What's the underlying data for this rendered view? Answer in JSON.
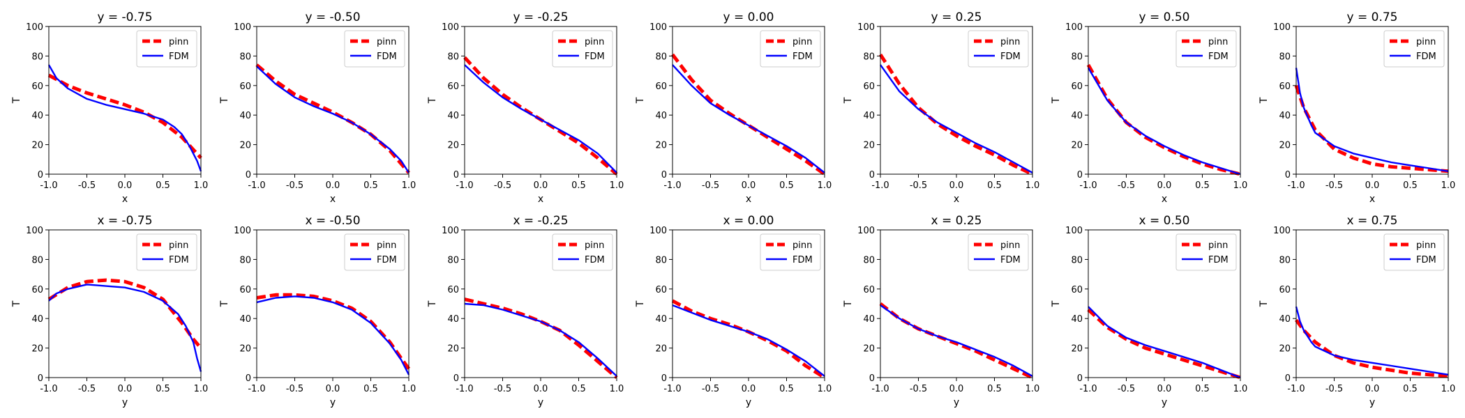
{
  "colors": {
    "pinn": "#ff0000",
    "fdm": "#0000ff"
  },
  "chart_data": [
    {
      "type": "line",
      "title": "y = -0.75",
      "xlabel": "x",
      "ylabel": "T",
      "xlim": [
        -1,
        1
      ],
      "ylim": [
        0,
        100
      ],
      "legend": "top-right",
      "grid": false,
      "xticks": [
        "-1.0",
        "-0.5",
        "0.0",
        "0.5",
        "1.0"
      ],
      "yticks": [
        "0",
        "20",
        "40",
        "60",
        "80",
        "100"
      ],
      "series": [
        {
          "name": "pinn",
          "x": [
            -1,
            -0.75,
            -0.5,
            -0.25,
            0,
            0.25,
            0.5,
            0.75,
            1
          ],
          "y": [
            67,
            60,
            55,
            51,
            47,
            42,
            35,
            25,
            11
          ]
        },
        {
          "name": "FDM",
          "x": [
            -1,
            -0.9,
            -0.75,
            -0.5,
            -0.25,
            0,
            0.25,
            0.5,
            0.65,
            0.75,
            0.85,
            0.95,
            1
          ],
          "y": [
            74,
            65,
            58,
            51,
            47,
            44,
            41,
            37,
            32,
            27,
            19,
            9,
            2
          ]
        }
      ]
    },
    {
      "type": "line",
      "title": "y = -0.50",
      "xlabel": "x",
      "ylabel": "T",
      "xlim": [
        -1,
        1
      ],
      "ylim": [
        0,
        100
      ],
      "legend": "top-right",
      "grid": false,
      "xticks": [
        "-1.0",
        "-0.5",
        "0.0",
        "0.5",
        "1.0"
      ],
      "yticks": [
        "0",
        "20",
        "40",
        "60",
        "80",
        "100"
      ],
      "series": [
        {
          "name": "pinn",
          "x": [
            -1,
            -0.75,
            -0.5,
            -0.25,
            0,
            0.25,
            0.5,
            0.75,
            1
          ],
          "y": [
            74,
            63,
            54,
            48,
            42,
            35,
            27,
            16,
            1
          ]
        },
        {
          "name": "FDM",
          "x": [
            -1,
            -0.75,
            -0.5,
            -0.25,
            0,
            0.25,
            0.5,
            0.75,
            0.9,
            1
          ],
          "y": [
            73,
            61,
            52,
            46,
            41,
            35,
            27,
            17,
            9,
            1
          ]
        }
      ]
    },
    {
      "type": "line",
      "title": "y = -0.25",
      "xlabel": "x",
      "ylabel": "T",
      "xlim": [
        -1,
        1
      ],
      "ylim": [
        0,
        100
      ],
      "legend": "top-right",
      "grid": false,
      "xticks": [
        "-1.0",
        "-0.5",
        "0.0",
        "0.5",
        "1.0"
      ],
      "yticks": [
        "0",
        "20",
        "40",
        "60",
        "80",
        "100"
      ],
      "series": [
        {
          "name": "pinn",
          "x": [
            -1,
            -0.75,
            -0.5,
            -0.25,
            0,
            0.25,
            0.5,
            0.75,
            1
          ],
          "y": [
            79,
            65,
            54,
            45,
            37,
            29,
            21,
            11,
            0
          ]
        },
        {
          "name": "FDM",
          "x": [
            -1,
            -0.75,
            -0.5,
            -0.25,
            0,
            0.25,
            0.5,
            0.75,
            1
          ],
          "y": [
            74,
            62,
            52,
            44,
            37,
            30,
            23,
            14,
            1
          ]
        }
      ]
    },
    {
      "type": "line",
      "title": "y = 0.00",
      "xlabel": "x",
      "ylabel": "T",
      "xlim": [
        -1,
        1
      ],
      "ylim": [
        0,
        100
      ],
      "legend": "top-right",
      "grid": false,
      "xticks": [
        "-1.0",
        "-0.5",
        "0.0",
        "0.5",
        "1.0"
      ],
      "yticks": [
        "0",
        "20",
        "40",
        "60",
        "80",
        "100"
      ],
      "series": [
        {
          "name": "pinn",
          "x": [
            -1,
            -0.75,
            -0.5,
            -0.25,
            0,
            0.25,
            0.5,
            0.75,
            1
          ],
          "y": [
            81,
            64,
            50,
            41,
            33,
            25,
            17,
            9,
            0
          ]
        },
        {
          "name": "FDM",
          "x": [
            -1,
            -0.75,
            -0.5,
            -0.25,
            0,
            0.25,
            0.5,
            0.75,
            1
          ],
          "y": [
            74,
            60,
            48,
            40,
            33,
            26,
            19,
            11,
            1
          ]
        }
      ]
    },
    {
      "type": "line",
      "title": "y = 0.25",
      "xlabel": "x",
      "ylabel": "T",
      "xlim": [
        -1,
        1
      ],
      "ylim": [
        0,
        100
      ],
      "legend": "top-right",
      "grid": false,
      "xticks": [
        "-1.0",
        "-0.5",
        "0.0",
        "0.5",
        "1.0"
      ],
      "yticks": [
        "0",
        "20",
        "40",
        "60",
        "80",
        "100"
      ],
      "series": [
        {
          "name": "pinn",
          "x": [
            -1,
            -0.75,
            -0.5,
            -0.25,
            0,
            0.25,
            0.5,
            0.75,
            1
          ],
          "y": [
            81,
            61,
            45,
            34,
            26,
            19,
            13,
            6,
            0
          ]
        },
        {
          "name": "FDM",
          "x": [
            -1,
            -0.75,
            -0.5,
            -0.25,
            0,
            0.25,
            0.5,
            0.75,
            1
          ],
          "y": [
            74,
            56,
            44,
            35,
            28,
            21,
            15,
            8,
            1
          ]
        }
      ]
    },
    {
      "type": "line",
      "title": "y = 0.50",
      "xlabel": "x",
      "ylabel": "T",
      "xlim": [
        -1,
        1
      ],
      "ylim": [
        0,
        100
      ],
      "legend": "top-right",
      "grid": false,
      "xticks": [
        "-1.0",
        "-0.5",
        "0.0",
        "0.5",
        "1.0"
      ],
      "yticks": [
        "0",
        "20",
        "40",
        "60",
        "80",
        "100"
      ],
      "series": [
        {
          "name": "pinn",
          "x": [
            -1,
            -0.75,
            -0.5,
            -0.25,
            0,
            0.25,
            0.5,
            0.75,
            1
          ],
          "y": [
            74,
            51,
            35,
            25,
            18,
            12,
            7,
            3,
            0
          ]
        },
        {
          "name": "FDM",
          "x": [
            -1,
            -0.75,
            -0.5,
            -0.25,
            0,
            0.25,
            0.5,
            0.75,
            1
          ],
          "y": [
            72,
            50,
            35,
            26,
            19,
            13,
            8,
            4,
            0
          ]
        }
      ]
    },
    {
      "type": "line",
      "title": "y = 0.75",
      "xlabel": "x",
      "ylabel": "T",
      "xlim": [
        -1,
        1
      ],
      "ylim": [
        0,
        100
      ],
      "legend": "top-right",
      "grid": false,
      "xticks": [
        "-1.0",
        "-0.5",
        "0.0",
        "0.5",
        "1.0"
      ],
      "yticks": [
        "0",
        "20",
        "40",
        "60",
        "80",
        "100"
      ],
      "series": [
        {
          "name": "pinn",
          "x": [
            -1,
            -0.9,
            -0.75,
            -0.5,
            -0.25,
            0,
            0.25,
            0.5,
            0.75,
            1
          ],
          "y": [
            60,
            45,
            30,
            17,
            11,
            7,
            5,
            4,
            3,
            2
          ]
        },
        {
          "name": "FDM",
          "x": [
            -1,
            -0.95,
            -0.9,
            -0.8,
            -0.75,
            -0.5,
            -0.25,
            0,
            0.25,
            0.5,
            0.75,
            1
          ],
          "y": [
            72,
            55,
            45,
            33,
            28,
            19,
            14,
            11,
            8,
            6,
            4,
            2
          ]
        }
      ]
    },
    {
      "type": "line",
      "title": "x = -0.75",
      "xlabel": "y",
      "ylabel": "T",
      "xlim": [
        -1,
        1
      ],
      "ylim": [
        0,
        100
      ],
      "legend": "top-right",
      "grid": false,
      "xticks": [
        "-1.0",
        "-0.5",
        "0.0",
        "0.5",
        "1.0"
      ],
      "yticks": [
        "0",
        "20",
        "40",
        "60",
        "80",
        "100"
      ],
      "series": [
        {
          "name": "pinn",
          "x": [
            -1,
            -0.75,
            -0.5,
            -0.25,
            0,
            0.25,
            0.5,
            0.75,
            0.9,
            1
          ],
          "y": [
            53,
            61,
            65,
            66,
            65,
            61,
            53,
            37,
            26,
            20
          ]
        },
        {
          "name": "FDM",
          "x": [
            -1,
            -0.9,
            -0.75,
            -0.5,
            -0.25,
            0,
            0.25,
            0.5,
            0.7,
            0.8,
            0.9,
            0.95,
            1
          ],
          "y": [
            52,
            57,
            60,
            63,
            62,
            61,
            58,
            52,
            43,
            35,
            24,
            13,
            4
          ]
        }
      ]
    },
    {
      "type": "line",
      "title": "x = -0.50",
      "xlabel": "y",
      "ylabel": "T",
      "xlim": [
        -1,
        1
      ],
      "ylim": [
        0,
        100
      ],
      "legend": "top-right",
      "grid": false,
      "xticks": [
        "-1.0",
        "-0.5",
        "0.0",
        "0.5",
        "1.0"
      ],
      "yticks": [
        "0",
        "20",
        "40",
        "60",
        "80",
        "100"
      ],
      "series": [
        {
          "name": "pinn",
          "x": [
            -1,
            -0.75,
            -0.5,
            -0.25,
            0,
            0.25,
            0.5,
            0.75,
            0.9,
            1
          ],
          "y": [
            54,
            56,
            56,
            55,
            52,
            47,
            38,
            24,
            13,
            6
          ]
        },
        {
          "name": "FDM",
          "x": [
            -1,
            -0.75,
            -0.5,
            -0.25,
            0,
            0.25,
            0.5,
            0.75,
            0.9,
            1
          ],
          "y": [
            51,
            54,
            55,
            54,
            51,
            46,
            37,
            23,
            12,
            2
          ]
        }
      ]
    },
    {
      "type": "line",
      "title": "x = -0.25",
      "xlabel": "y",
      "ylabel": "T",
      "xlim": [
        -1,
        1
      ],
      "ylim": [
        0,
        100
      ],
      "legend": "top-right",
      "grid": false,
      "xticks": [
        "-1.0",
        "-0.5",
        "0.0",
        "0.5",
        "1.0"
      ],
      "yticks": [
        "0",
        "20",
        "40",
        "60",
        "80",
        "100"
      ],
      "series": [
        {
          "name": "pinn",
          "x": [
            -1,
            -0.75,
            -0.5,
            -0.25,
            0,
            0.25,
            0.5,
            0.75,
            1
          ],
          "y": [
            53,
            50,
            47,
            43,
            38,
            32,
            22,
            11,
            0
          ]
        },
        {
          "name": "FDM",
          "x": [
            -1,
            -0.75,
            -0.5,
            -0.25,
            0,
            0.25,
            0.5,
            0.75,
            1
          ],
          "y": [
            50,
            49,
            46,
            42,
            38,
            32,
            24,
            13,
            1
          ]
        }
      ]
    },
    {
      "type": "line",
      "title": "x = 0.00",
      "xlabel": "y",
      "ylabel": "T",
      "xlim": [
        -1,
        1
      ],
      "ylim": [
        0,
        100
      ],
      "legend": "top-right",
      "grid": false,
      "xticks": [
        "-1.0",
        "-0.5",
        "0.0",
        "0.5",
        "1.0"
      ],
      "yticks": [
        "0",
        "20",
        "40",
        "60",
        "80",
        "100"
      ],
      "series": [
        {
          "name": "pinn",
          "x": [
            -1,
            -0.75,
            -0.5,
            -0.25,
            0,
            0.25,
            0.5,
            0.75,
            1
          ],
          "y": [
            52,
            45,
            40,
            36,
            31,
            25,
            18,
            8,
            0
          ]
        },
        {
          "name": "FDM",
          "x": [
            -1,
            -0.75,
            -0.5,
            -0.25,
            0,
            0.25,
            0.5,
            0.75,
            1
          ],
          "y": [
            49,
            44,
            39,
            35,
            31,
            26,
            19,
            11,
            1
          ]
        }
      ]
    },
    {
      "type": "line",
      "title": "x = 0.25",
      "xlabel": "y",
      "ylabel": "T",
      "xlim": [
        -1,
        1
      ],
      "ylim": [
        0,
        100
      ],
      "legend": "top-right",
      "grid": false,
      "xticks": [
        "-1.0",
        "-0.5",
        "0.0",
        "0.5",
        "1.0"
      ],
      "yticks": [
        "0",
        "20",
        "40",
        "60",
        "80",
        "100"
      ],
      "series": [
        {
          "name": "pinn",
          "x": [
            -1,
            -0.75,
            -0.5,
            -0.25,
            0,
            0.25,
            0.5,
            0.75,
            1
          ],
          "y": [
            50,
            40,
            33,
            28,
            23,
            18,
            12,
            6,
            0
          ]
        },
        {
          "name": "FDM",
          "x": [
            -1,
            -0.75,
            -0.5,
            -0.25,
            0,
            0.25,
            0.5,
            0.75,
            1
          ],
          "y": [
            49,
            40,
            33,
            28,
            24,
            19,
            14,
            8,
            1
          ]
        }
      ]
    },
    {
      "type": "line",
      "title": "x = 0.50",
      "xlabel": "y",
      "ylabel": "T",
      "xlim": [
        -1,
        1
      ],
      "ylim": [
        0,
        100
      ],
      "legend": "top-right",
      "grid": false,
      "xticks": [
        "-1.0",
        "-0.5",
        "0.0",
        "0.5",
        "1.0"
      ],
      "yticks": [
        "0",
        "20",
        "40",
        "60",
        "80",
        "100"
      ],
      "series": [
        {
          "name": "pinn",
          "x": [
            -1,
            -0.75,
            -0.5,
            -0.25,
            0,
            0.25,
            0.5,
            0.75,
            1
          ],
          "y": [
            46,
            34,
            26,
            20,
            16,
            12,
            8,
            4,
            0
          ]
        },
        {
          "name": "FDM",
          "x": [
            -1,
            -0.75,
            -0.5,
            -0.25,
            0,
            0.25,
            0.5,
            0.75,
            1
          ],
          "y": [
            48,
            35,
            27,
            22,
            18,
            14,
            10,
            5,
            0
          ]
        }
      ]
    },
    {
      "type": "line",
      "title": "x = 0.75",
      "xlabel": "y",
      "ylabel": "T",
      "xlim": [
        -1,
        1
      ],
      "ylim": [
        0,
        100
      ],
      "legend": "top-right",
      "grid": false,
      "xticks": [
        "-1.0",
        "-0.5",
        "0.0",
        "0.5",
        "1.0"
      ],
      "yticks": [
        "0",
        "20",
        "40",
        "60",
        "80",
        "100"
      ],
      "series": [
        {
          "name": "pinn",
          "x": [
            -1,
            -0.9,
            -0.75,
            -0.5,
            -0.25,
            0,
            0.25,
            0.5,
            0.75,
            1
          ],
          "y": [
            39,
            32,
            24,
            15,
            10,
            7,
            5,
            3,
            2,
            1
          ]
        },
        {
          "name": "FDM",
          "x": [
            -1,
            -0.95,
            -0.9,
            -0.8,
            -0.75,
            -0.5,
            -0.25,
            0,
            0.25,
            0.5,
            0.75,
            1
          ],
          "y": [
            48,
            38,
            32,
            24,
            21,
            15,
            12,
            10,
            8,
            6,
            4,
            2
          ]
        }
      ]
    }
  ]
}
